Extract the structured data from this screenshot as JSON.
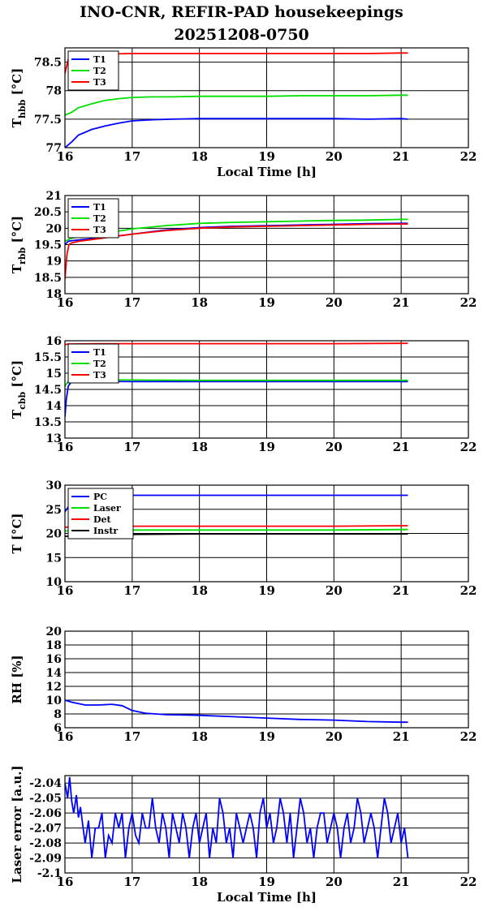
{
  "title_line1": "INO-CNR, REFIR-PAD housekeepings",
  "title_line2": "20251208-0750",
  "colors": {
    "blue": "#0000ff",
    "green": "#00e000",
    "red": "#ff0000",
    "black": "#000000"
  },
  "chart_data": [
    {
      "type": "line",
      "ylabel": "T",
      "ylabel_sub": "hbb",
      "ylabel_unit": "[°C]",
      "xlabel": "Local Time [h]",
      "xlim": [
        16,
        22
      ],
      "ylim": [
        77,
        78.75
      ],
      "yticks": [
        77,
        77.5,
        78,
        78.5
      ],
      "ytick_labels": [
        "77",
        "77.5",
        "78",
        "78.5"
      ],
      "xticks": [
        16,
        17,
        18,
        19,
        20,
        21,
        22
      ],
      "legend": "top-left",
      "series": [
        {
          "name": "T1",
          "color": "#0000ff",
          "x": [
            16.0,
            16.1,
            16.2,
            16.4,
            16.6,
            16.8,
            17.0,
            17.3,
            17.6,
            18.0,
            18.5,
            19.0,
            19.5,
            20.0,
            20.5,
            21.0,
            21.1
          ],
          "y": [
            77.0,
            77.1,
            77.22,
            77.32,
            77.38,
            77.43,
            77.47,
            77.49,
            77.5,
            77.51,
            77.51,
            77.51,
            77.51,
            77.51,
            77.5,
            77.51,
            77.5
          ]
        },
        {
          "name": "T2",
          "color": "#00e000",
          "x": [
            16.0,
            16.1,
            16.2,
            16.4,
            16.6,
            16.8,
            17.0,
            17.3,
            17.6,
            18.0,
            18.5,
            19.0,
            19.5,
            20.0,
            20.5,
            21.0,
            21.1
          ],
          "y": [
            77.57,
            77.62,
            77.7,
            77.77,
            77.83,
            77.86,
            77.88,
            77.89,
            77.89,
            77.9,
            77.9,
            77.9,
            77.91,
            77.91,
            77.91,
            77.92,
            77.92
          ]
        },
        {
          "name": "T3",
          "color": "#ff0000",
          "x": [
            16.0,
            16.05,
            16.1,
            16.2,
            16.5,
            17.0,
            17.5,
            18.0,
            18.5,
            19.0,
            19.5,
            20.0,
            20.5,
            21.0,
            21.1
          ],
          "y": [
            78.3,
            78.55,
            78.63,
            78.64,
            78.64,
            78.65,
            78.65,
            78.65,
            78.65,
            78.65,
            78.65,
            78.65,
            78.65,
            78.66,
            78.66
          ]
        }
      ]
    },
    {
      "type": "line",
      "ylabel": "T",
      "ylabel_sub": "rbb",
      "ylabel_unit": "[°C]",
      "xlabel": "",
      "xlim": [
        16,
        22
      ],
      "ylim": [
        18,
        21
      ],
      "yticks": [
        18,
        18.5,
        19,
        19.5,
        20,
        20.5,
        21
      ],
      "ytick_labels": [
        "18",
        "18.5",
        "19",
        "19.5",
        "20",
        "20.5",
        "21"
      ],
      "xticks": [
        16,
        17,
        18,
        19,
        20,
        21,
        22
      ],
      "legend": "top-left",
      "series": [
        {
          "name": "T1",
          "color": "#0000ff",
          "x": [
            16.0,
            16.05,
            16.1,
            16.3,
            16.6,
            17.0,
            17.5,
            18.0,
            18.5,
            19.0,
            19.5,
            20.0,
            20.5,
            21.0,
            21.1
          ],
          "y": [
            19.5,
            19.6,
            19.62,
            19.66,
            19.72,
            19.82,
            19.95,
            20.02,
            20.06,
            20.08,
            20.1,
            20.12,
            20.14,
            20.15,
            20.15
          ]
        },
        {
          "name": "T2",
          "color": "#00e000",
          "x": [
            16.0,
            16.05,
            16.1,
            16.3,
            16.6,
            17.0,
            17.5,
            18.0,
            18.5,
            19.0,
            19.5,
            20.0,
            20.5,
            21.0,
            21.1
          ],
          "y": [
            19.6,
            19.65,
            19.7,
            19.75,
            19.85,
            19.98,
            20.08,
            20.15,
            20.18,
            20.2,
            20.22,
            20.24,
            20.25,
            20.27,
            20.27
          ]
        },
        {
          "name": "T3",
          "color": "#ff0000",
          "x": [
            16.0,
            16.03,
            16.06,
            16.1,
            16.2,
            16.5,
            17.0,
            17.5,
            18.0,
            18.5,
            19.0,
            19.5,
            20.0,
            20.5,
            21.0,
            21.1
          ],
          "y": [
            18.45,
            19.2,
            19.5,
            19.55,
            19.6,
            19.68,
            19.82,
            19.93,
            20.0,
            20.04,
            20.06,
            20.08,
            20.1,
            20.12,
            20.13,
            20.13
          ]
        }
      ]
    },
    {
      "type": "line",
      "ylabel": "T",
      "ylabel_sub": "cbb",
      "ylabel_unit": "[°C]",
      "xlabel": "",
      "xlim": [
        16,
        22
      ],
      "ylim": [
        13,
        16
      ],
      "yticks": [
        13,
        13.5,
        14,
        14.5,
        15,
        15.5,
        16
      ],
      "ytick_labels": [
        "13",
        "13.5",
        "14",
        "14.5",
        "15",
        "15.5",
        "16"
      ],
      "xticks": [
        16,
        17,
        18,
        19,
        20,
        21,
        22
      ],
      "legend": "top-left",
      "series": [
        {
          "name": "T1",
          "color": "#0000ff",
          "x": [
            16.0,
            16.02,
            16.05,
            16.1,
            16.3,
            17.0,
            18.0,
            19.0,
            20.0,
            21.0,
            21.1
          ],
          "y": [
            13.65,
            14.2,
            14.6,
            14.75,
            14.75,
            14.74,
            14.74,
            14.74,
            14.74,
            14.74,
            14.74
          ]
        },
        {
          "name": "T2",
          "color": "#00e000",
          "x": [
            16.0,
            16.05,
            16.1,
            16.3,
            17.0,
            18.0,
            19.0,
            20.0,
            21.0,
            21.1
          ],
          "y": [
            14.6,
            14.75,
            14.8,
            14.8,
            14.79,
            14.78,
            14.78,
            14.78,
            14.78,
            14.78
          ]
        },
        {
          "name": "T3",
          "color": "#ff0000",
          "x": [
            16.0,
            16.05,
            16.1,
            16.5,
            17.0,
            18.0,
            19.0,
            20.0,
            21.0,
            21.1
          ],
          "y": [
            15.88,
            15.9,
            15.9,
            15.91,
            15.91,
            15.91,
            15.91,
            15.91,
            15.92,
            15.92
          ]
        }
      ]
    },
    {
      "type": "line",
      "ylabel": "T [°C]",
      "ylabel_sub": "",
      "ylabel_unit": "",
      "xlabel": "",
      "xlim": [
        16,
        22
      ],
      "ylim": [
        10,
        30
      ],
      "yticks": [
        10,
        15,
        20,
        25,
        30
      ],
      "ytick_labels": [
        "10",
        "15",
        "20",
        "25",
        "30"
      ],
      "xticks": [
        16,
        17,
        18,
        19,
        20,
        21,
        22
      ],
      "legend": "top-left",
      "series": [
        {
          "name": "PC",
          "color": "#0000ff",
          "x": [
            16.0,
            16.1,
            16.3,
            16.6,
            17.0,
            18.0,
            19.0,
            20.0,
            21.0,
            21.1
          ],
          "y": [
            24.5,
            26.5,
            27.5,
            27.8,
            27.9,
            27.9,
            27.9,
            27.9,
            27.9,
            27.9
          ]
        },
        {
          "name": "Laser",
          "color": "#00e000",
          "x": [
            16.0,
            16.3,
            17.0,
            18.0,
            19.0,
            20.0,
            21.0,
            21.1
          ],
          "y": [
            20.5,
            20.6,
            20.7,
            20.7,
            20.7,
            20.7,
            20.8,
            20.8
          ]
        },
        {
          "name": "Det",
          "color": "#ff0000",
          "x": [
            16.0,
            16.3,
            17.0,
            18.0,
            19.0,
            20.0,
            21.0,
            21.1
          ],
          "y": [
            21.3,
            21.4,
            21.5,
            21.5,
            21.5,
            21.5,
            21.6,
            21.6
          ]
        },
        {
          "name": "Instr",
          "color": "#000000",
          "x": [
            16.0,
            16.3,
            17.0,
            18.0,
            19.0,
            20.0,
            21.0,
            21.1
          ],
          "y": [
            19.4,
            19.6,
            19.8,
            19.9,
            19.9,
            19.9,
            19.9,
            19.9
          ]
        }
      ]
    },
    {
      "type": "line",
      "ylabel": "RH [%]",
      "ylabel_sub": "",
      "ylabel_unit": "",
      "xlabel": "",
      "xlim": [
        16,
        22
      ],
      "ylim": [
        6,
        20
      ],
      "yticks": [
        6,
        8,
        10,
        12,
        14,
        16,
        18,
        20
      ],
      "ytick_labels": [
        "6",
        "8",
        "10",
        "12",
        "14",
        "16",
        "18",
        "20"
      ],
      "xticks": [
        16,
        17,
        18,
        19,
        20,
        21,
        22
      ],
      "legend": "none",
      "series": [
        {
          "name": "",
          "color": "#0000ff",
          "x": [
            16.0,
            16.1,
            16.3,
            16.5,
            16.7,
            16.85,
            17.0,
            17.2,
            17.5,
            18.0,
            18.5,
            19.0,
            19.5,
            20.0,
            20.5,
            21.0,
            21.1
          ],
          "y": [
            10.0,
            9.7,
            9.3,
            9.3,
            9.4,
            9.2,
            8.5,
            8.1,
            7.9,
            7.8,
            7.6,
            7.4,
            7.2,
            7.1,
            6.9,
            6.8,
            6.8
          ]
        }
      ]
    },
    {
      "type": "line",
      "ylabel": "Laser error [a.u.]",
      "ylabel_sub": "",
      "ylabel_unit": "",
      "xlabel": "Local Time [h]",
      "xlim": [
        16,
        22
      ],
      "ylim": [
        -2.1,
        -2.035
      ],
      "yticks": [
        -2.1,
        -2.09,
        -2.08,
        -2.07,
        -2.06,
        -2.05,
        -2.04
      ],
      "ytick_labels": [
        "-2.1",
        "-2.09",
        "-2.08",
        "-2.07",
        "-2.06",
        "-2.05",
        "-2.04"
      ],
      "xticks": [
        16,
        17,
        18,
        19,
        20,
        21,
        22
      ],
      "legend": "none",
      "series": [
        {
          "name": "",
          "color": "#0000ff",
          "x": [
            16.0,
            16.04,
            16.07,
            16.1,
            16.13,
            16.17,
            16.2,
            16.23,
            16.27,
            16.3,
            16.35,
            16.4,
            16.45,
            16.5,
            16.55,
            16.6,
            16.65,
            16.7,
            16.75,
            16.8,
            16.85,
            16.9,
            16.95,
            17.0,
            17.05,
            17.1,
            17.15,
            17.2,
            17.25,
            17.3,
            17.35,
            17.4,
            17.45,
            17.5,
            17.55,
            17.6,
            17.65,
            17.7,
            17.75,
            17.8,
            17.85,
            17.9,
            17.95,
            18.0,
            18.05,
            18.1,
            18.15,
            18.2,
            18.25,
            18.3,
            18.35,
            18.4,
            18.45,
            18.5,
            18.55,
            18.6,
            18.65,
            18.7,
            18.75,
            18.8,
            18.85,
            18.9,
            18.95,
            19.0,
            19.05,
            19.1,
            19.15,
            19.2,
            19.25,
            19.3,
            19.35,
            19.4,
            19.45,
            19.5,
            19.55,
            19.6,
            19.65,
            19.7,
            19.75,
            19.8,
            19.85,
            19.9,
            19.95,
            20.0,
            20.05,
            20.1,
            20.15,
            20.2,
            20.25,
            20.3,
            20.35,
            20.4,
            20.45,
            20.5,
            20.55,
            20.6,
            20.65,
            20.7,
            20.75,
            20.8,
            20.85,
            20.9,
            20.95,
            21.0,
            21.05,
            21.1
          ],
          "y": [
            -2.04,
            -2.05,
            -2.036,
            -2.052,
            -2.06,
            -2.048,
            -2.063,
            -2.056,
            -2.07,
            -2.08,
            -2.065,
            -2.09,
            -2.07,
            -2.07,
            -2.06,
            -2.09,
            -2.075,
            -2.08,
            -2.06,
            -2.07,
            -2.06,
            -2.09,
            -2.07,
            -2.06,
            -2.075,
            -2.08,
            -2.06,
            -2.07,
            -2.07,
            -2.05,
            -2.07,
            -2.08,
            -2.06,
            -2.07,
            -2.09,
            -2.06,
            -2.07,
            -2.08,
            -2.06,
            -2.07,
            -2.09,
            -2.07,
            -2.06,
            -2.08,
            -2.07,
            -2.06,
            -2.09,
            -2.07,
            -2.08,
            -2.05,
            -2.06,
            -2.08,
            -2.07,
            -2.09,
            -2.06,
            -2.07,
            -2.08,
            -2.07,
            -2.06,
            -2.07,
            -2.09,
            -2.06,
            -2.05,
            -2.07,
            -2.06,
            -2.08,
            -2.07,
            -2.05,
            -2.06,
            -2.08,
            -2.06,
            -2.09,
            -2.07,
            -2.05,
            -2.06,
            -2.08,
            -2.07,
            -2.09,
            -2.07,
            -2.06,
            -2.06,
            -2.08,
            -2.07,
            -2.06,
            -2.07,
            -2.09,
            -2.07,
            -2.06,
            -2.08,
            -2.07,
            -2.05,
            -2.06,
            -2.08,
            -2.07,
            -2.06,
            -2.07,
            -2.09,
            -2.07,
            -2.05,
            -2.06,
            -2.08,
            -2.07,
            -2.06,
            -2.08,
            -2.07,
            -2.09
          ]
        }
      ]
    }
  ]
}
